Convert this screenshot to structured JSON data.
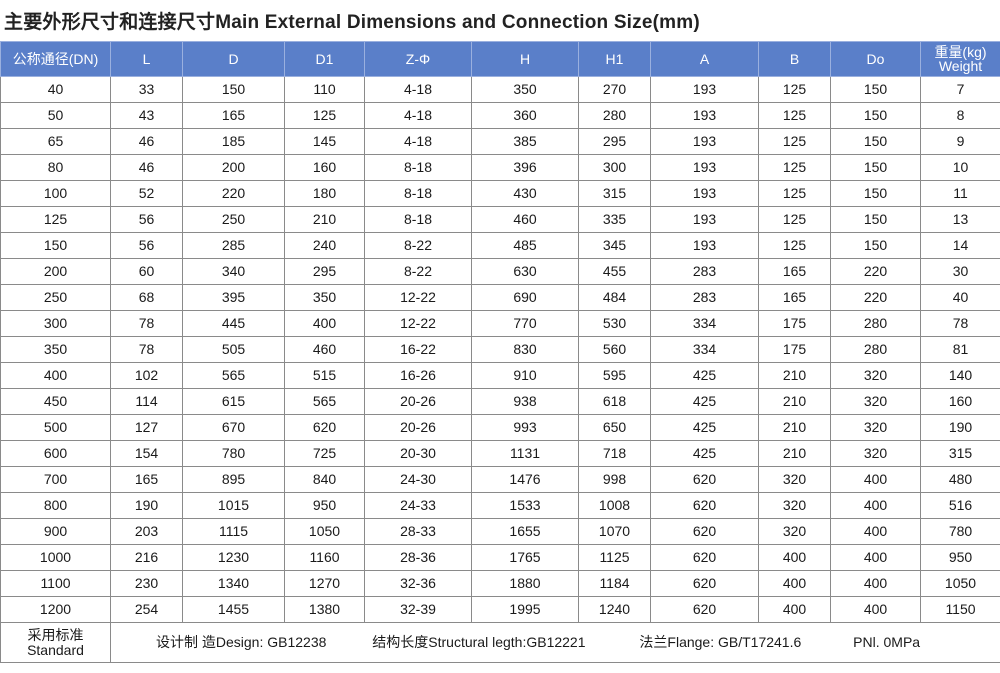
{
  "title": "主要外形尺寸和连接尺寸Main External Dimensions and Connection Size(mm)",
  "headers": [
    "公称通径(DN)",
    "L",
    "D",
    "D1",
    "Z-Φ",
    "H",
    "H1",
    "A",
    "B",
    "Do"
  ],
  "weight_header": {
    "cn": "重量(kg)",
    "en": "Weight"
  },
  "rows": [
    [
      "40",
      "33",
      "150",
      "110",
      "4-18",
      "350",
      "270",
      "193",
      "125",
      "150",
      "7"
    ],
    [
      "50",
      "43",
      "165",
      "125",
      "4-18",
      "360",
      "280",
      "193",
      "125",
      "150",
      "8"
    ],
    [
      "65",
      "46",
      "185",
      "145",
      "4-18",
      "385",
      "295",
      "193",
      "125",
      "150",
      "9"
    ],
    [
      "80",
      "46",
      "200",
      "160",
      "8-18",
      "396",
      "300",
      "193",
      "125",
      "150",
      "10"
    ],
    [
      "100",
      "52",
      "220",
      "180",
      "8-18",
      "430",
      "315",
      "193",
      "125",
      "150",
      "11"
    ],
    [
      "125",
      "56",
      "250",
      "210",
      "8-18",
      "460",
      "335",
      "193",
      "125",
      "150",
      "13"
    ],
    [
      "150",
      "56",
      "285",
      "240",
      "8-22",
      "485",
      "345",
      "193",
      "125",
      "150",
      "14"
    ],
    [
      "200",
      "60",
      "340",
      "295",
      "8-22",
      "630",
      "455",
      "283",
      "165",
      "220",
      "30"
    ],
    [
      "250",
      "68",
      "395",
      "350",
      "12-22",
      "690",
      "484",
      "283",
      "165",
      "220",
      "40"
    ],
    [
      "300",
      "78",
      "445",
      "400",
      "12-22",
      "770",
      "530",
      "334",
      "175",
      "280",
      "78"
    ],
    [
      "350",
      "78",
      "505",
      "460",
      "16-22",
      "830",
      "560",
      "334",
      "175",
      "280",
      "81"
    ],
    [
      "400",
      "102",
      "565",
      "515",
      "16-26",
      "910",
      "595",
      "425",
      "210",
      "320",
      "140"
    ],
    [
      "450",
      "114",
      "615",
      "565",
      "20-26",
      "938",
      "618",
      "425",
      "210",
      "320",
      "160"
    ],
    [
      "500",
      "127",
      "670",
      "620",
      "20-26",
      "993",
      "650",
      "425",
      "210",
      "320",
      "190"
    ],
    [
      "600",
      "154",
      "780",
      "725",
      "20-30",
      "1131",
      "718",
      "425",
      "210",
      "320",
      "315"
    ],
    [
      "700",
      "165",
      "895",
      "840",
      "24-30",
      "1476",
      "998",
      "620",
      "320",
      "400",
      "480"
    ],
    [
      "800",
      "190",
      "1015",
      "950",
      "24-33",
      "1533",
      "1008",
      "620",
      "320",
      "400",
      "516"
    ],
    [
      "900",
      "203",
      "1115",
      "1050",
      "28-33",
      "1655",
      "1070",
      "620",
      "320",
      "400",
      "780"
    ],
    [
      "1000",
      "216",
      "1230",
      "1160",
      "28-36",
      "1765",
      "1125",
      "620",
      "400",
      "400",
      "950"
    ],
    [
      "1100",
      "230",
      "1340",
      "1270",
      "32-36",
      "1880",
      "1184",
      "620",
      "400",
      "400",
      "1050"
    ],
    [
      "1200",
      "254",
      "1455",
      "1380",
      "32-39",
      "1995",
      "1240",
      "620",
      "400",
      "400",
      "1150"
    ]
  ],
  "standard": {
    "label_cn": "采用标准",
    "label_en": "Standard",
    "design": "设计制 造Design:  GB12238",
    "length": "结构长度Structural legth:GB12221",
    "flange": "法兰Flange:  GB/T17241.6",
    "pressure": "PNl. 0MPa"
  }
}
